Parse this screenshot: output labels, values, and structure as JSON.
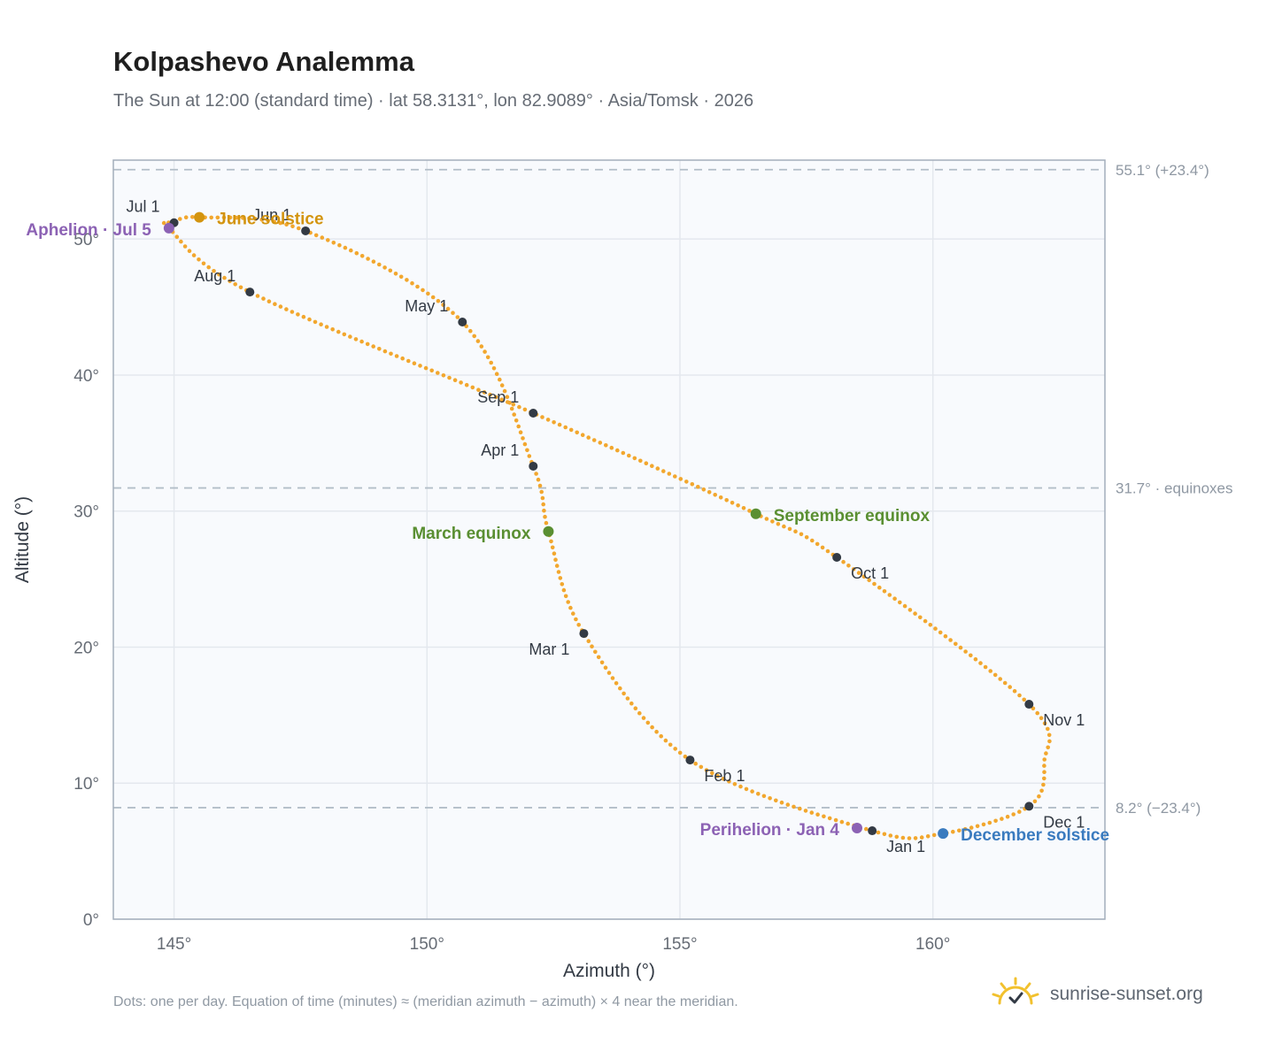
{
  "header": {
    "title": "Kolpashevo Analemma",
    "subtitle": "The Sun at 12:00 (standard time) · lat 58.3131°, lon 82.9089° · Asia/Tomsk · 2026"
  },
  "footer": {
    "note": "Dots: one per day. Equation of time (minutes) ≈ (meridian azimuth − azimuth) × 4 near the meridian.",
    "brand": "sunrise-sunset.org"
  },
  "colors": {
    "curve": "#f2a72e",
    "month_marker": "#333a44",
    "solstice_june": "#d3940f",
    "solstice_december": "#3a7bbf",
    "equinox": "#5a8f32",
    "apsis": "#8c62b4",
    "plot_background": "#f8fafd",
    "grid": "#e4e8ee",
    "axis_frame": "#a3aebb",
    "reference_line": "#b3bec8",
    "logo": "#f2c12e"
  },
  "chart_data": {
    "type": "scatter",
    "xlabel": "Azimuth (°)",
    "ylabel": "Altitude (°)",
    "xlim": [
      143.8,
      163.4
    ],
    "ylim": [
      0,
      55.8
    ],
    "x_ticks": [
      145,
      150,
      155,
      160
    ],
    "y_ticks": [
      0,
      10,
      20,
      30,
      40,
      50
    ],
    "x_tick_format": "{v}°",
    "y_tick_format": "{v}°",
    "grid": true,
    "reference_lines": [
      {
        "y": 55.1,
        "label": "55.1° (+23.4°)"
      },
      {
        "y": 31.7,
        "label": "31.7° · equinoxes"
      },
      {
        "y": 8.2,
        "label": "8.2° (−23.4°)"
      }
    ],
    "series": [
      {
        "type": "daily_path",
        "points": [
          [
            158.8,
            6.5
          ],
          [
            155.2,
            11.7
          ],
          [
            153.1,
            21.0
          ],
          [
            152.4,
            28.5
          ],
          [
            152.1,
            33.3
          ],
          [
            150.7,
            43.9
          ],
          [
            147.6,
            50.6
          ],
          [
            145.5,
            51.6
          ],
          [
            145.0,
            51.2
          ],
          [
            144.9,
            50.8
          ],
          [
            146.5,
            46.1
          ],
          [
            152.1,
            37.2
          ],
          [
            156.5,
            29.8
          ],
          [
            158.1,
            26.6
          ],
          [
            161.9,
            15.8
          ],
          [
            162.2,
            11.5
          ],
          [
            161.9,
            8.3
          ],
          [
            160.2,
            6.3
          ],
          [
            158.8,
            6.5
          ]
        ]
      }
    ],
    "month_markers": [
      {
        "label": "Jan 1",
        "x": 158.8,
        "y": 6.5
      },
      {
        "label": "Feb 1",
        "x": 155.2,
        "y": 11.7
      },
      {
        "label": "Mar 1",
        "x": 153.1,
        "y": 21.0
      },
      {
        "label": "Apr 1",
        "x": 152.1,
        "y": 33.3
      },
      {
        "label": "May 1",
        "x": 150.7,
        "y": 43.9
      },
      {
        "label": "Jun 1",
        "x": 147.6,
        "y": 50.6
      },
      {
        "label": "Jul 1",
        "x": 145.0,
        "y": 51.2
      },
      {
        "label": "Aug 1",
        "x": 146.5,
        "y": 46.1
      },
      {
        "label": "Sep 1",
        "x": 152.1,
        "y": 37.2
      },
      {
        "label": "Oct 1",
        "x": 158.1,
        "y": 26.6
      },
      {
        "label": "Nov 1",
        "x": 161.9,
        "y": 15.8
      },
      {
        "label": "Dec 1",
        "x": 161.9,
        "y": 8.3
      }
    ],
    "events": [
      {
        "label": "June solstice",
        "x": 145.5,
        "y": 51.6,
        "kind": "solstice_june"
      },
      {
        "label": "December solstice",
        "x": 160.2,
        "y": 6.3,
        "kind": "solstice_december"
      },
      {
        "label": "March equinox",
        "x": 152.4,
        "y": 28.5,
        "kind": "equinox"
      },
      {
        "label": "September equinox",
        "x": 156.5,
        "y": 29.8,
        "kind": "equinox"
      },
      {
        "label": "Aphelion · Jul 5",
        "x": 144.9,
        "y": 50.8,
        "kind": "apsis"
      },
      {
        "label": "Perihelion · Jan 4",
        "x": 158.5,
        "y": 6.7,
        "kind": "apsis"
      }
    ]
  }
}
